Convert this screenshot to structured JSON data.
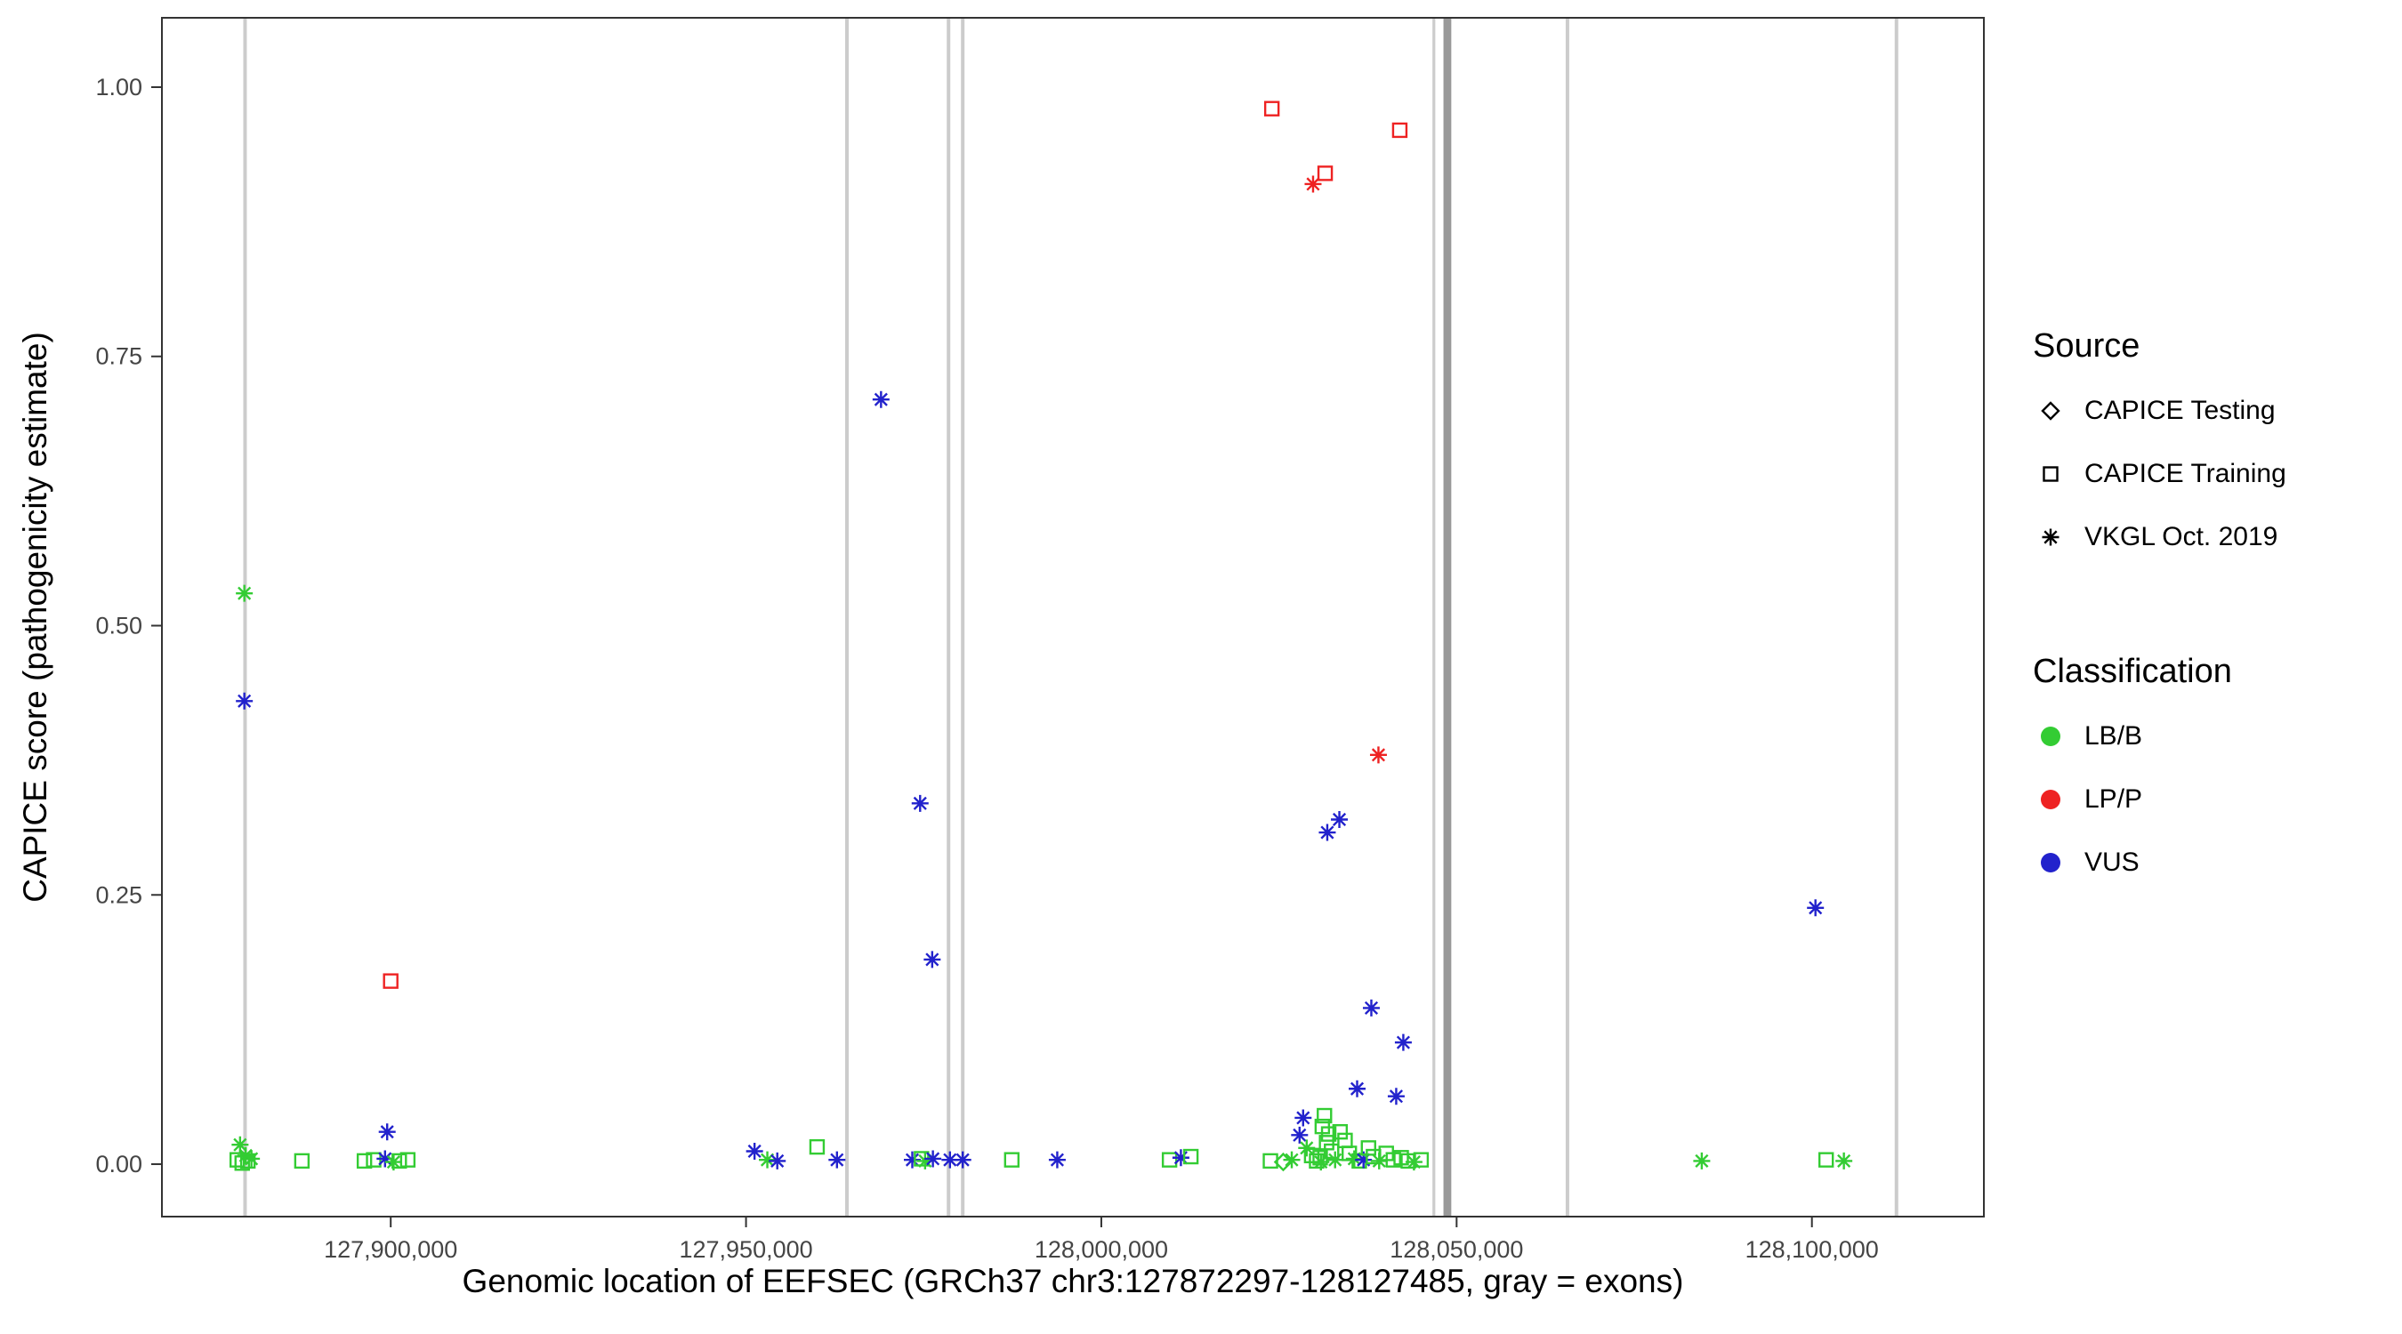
{
  "figure": {
    "background": "#ffffff",
    "panel_border_color": "#333333",
    "tick_label_color": "#454545"
  },
  "legend": {
    "source": {
      "title": "Source",
      "items": [
        {
          "shape": "diamond",
          "label": "CAPICE Testing"
        },
        {
          "shape": "square",
          "label": "CAPICE Training"
        },
        {
          "shape": "asterisk",
          "label": "VKGL Oct. 2019"
        }
      ]
    },
    "classification": {
      "title": "Classification",
      "items": [
        {
          "label": "LB/B",
          "color": "#33cc33"
        },
        {
          "label": "LP/P",
          "color": "#ee2222"
        },
        {
          "label": "VUS",
          "color": "#2222cc"
        }
      ]
    }
  },
  "chart_data": {
    "type": "scatter",
    "title": "",
    "xlabel": "Genomic location of EEFSEC (GRCh37 chr3:127872297-128127485, gray = exons)",
    "ylabel": "CAPICE score (pathogenicity estimate)",
    "xlim": [
      127867800,
      128124200
    ],
    "ylim": [
      -0.0487,
      1.0644
    ],
    "grid": false,
    "legend_position": "right",
    "x_ticks": [
      {
        "value": 127900000,
        "label": "127,900,000"
      },
      {
        "value": 127950000,
        "label": "127,950,000"
      },
      {
        "value": 128000000,
        "label": "128,000,000"
      },
      {
        "value": 128050000,
        "label": "128,050,000"
      },
      {
        "value": 128100000,
        "label": "128,100,000"
      }
    ],
    "y_ticks": [
      {
        "value": 0.0,
        "label": "0.00"
      },
      {
        "value": 0.25,
        "label": "0.25"
      },
      {
        "value": 0.5,
        "label": "0.50"
      },
      {
        "value": 0.75,
        "label": "0.75"
      },
      {
        "value": 1.0,
        "label": "1.00"
      }
    ],
    "classes": {
      "LB/B": "#33cc33",
      "LP/P": "#ee2222",
      "VUS": "#2222cc"
    },
    "shapes": {
      "CAPICE Testing": "diamond",
      "CAPICE Training": "square",
      "VKGL Oct. 2019": "asterisk"
    },
    "exon_default_color": "#cccccc",
    "exons": [
      {
        "pos": 127879500,
        "width_bp": 500
      },
      {
        "pos": 127964200,
        "width_bp": 500
      },
      {
        "pos": 127978500,
        "width_bp": 500
      },
      {
        "pos": 127980500,
        "width_bp": 500
      },
      {
        "pos": 128046800,
        "width_bp": 400
      },
      {
        "pos": 128048700,
        "width_bp": 1100,
        "color": "#999999"
      },
      {
        "pos": 128065600,
        "width_bp": 500
      },
      {
        "pos": 128111900,
        "width_bp": 500
      }
    ],
    "points_columns": [
      "position",
      "score",
      "source",
      "classification"
    ],
    "points": [
      [
        127879400,
        0.53,
        "VKGL Oct. 2019",
        "LB/B"
      ],
      [
        127879400,
        0.43,
        "VKGL Oct. 2019",
        "VUS"
      ],
      [
        127878800,
        0.018,
        "VKGL Oct. 2019",
        "LB/B"
      ],
      [
        127879600,
        0.008,
        "VKGL Oct. 2019",
        "LB/B"
      ],
      [
        127880400,
        0.005,
        "VKGL Oct. 2019",
        "LB/B"
      ],
      [
        127878400,
        0.004,
        "CAPICE Training",
        "LB/B"
      ],
      [
        127879900,
        0.003,
        "CAPICE Training",
        "LB/B"
      ],
      [
        127879100,
        0.001,
        "CAPICE Training",
        "LB/B"
      ],
      [
        127887500,
        0.003,
        "CAPICE Training",
        "LB/B"
      ],
      [
        127896300,
        0.003,
        "CAPICE Training",
        "LB/B"
      ],
      [
        127897600,
        0.004,
        "CAPICE Training",
        "LB/B"
      ],
      [
        127899200,
        0.005,
        "VKGL Oct. 2019",
        "VUS"
      ],
      [
        127899500,
        0.03,
        "VKGL Oct. 2019",
        "VUS"
      ],
      [
        127900000,
        0.17,
        "CAPICE Training",
        "LP/P"
      ],
      [
        127900400,
        0.002,
        "VKGL Oct. 2019",
        "LB/B"
      ],
      [
        127901200,
        0.003,
        "CAPICE Training",
        "LB/B"
      ],
      [
        127902400,
        0.004,
        "CAPICE Training",
        "LB/B"
      ],
      [
        127951200,
        0.012,
        "VKGL Oct. 2019",
        "VUS"
      ],
      [
        127953000,
        0.004,
        "VKGL Oct. 2019",
        "LB/B"
      ],
      [
        127954400,
        0.003,
        "VKGL Oct. 2019",
        "VUS"
      ],
      [
        127960000,
        0.016,
        "CAPICE Training",
        "LB/B"
      ],
      [
        127962800,
        0.004,
        "VKGL Oct. 2019",
        "VUS"
      ],
      [
        127969000,
        0.71,
        "VKGL Oct. 2019",
        "VUS"
      ],
      [
        127973400,
        0.004,
        "VKGL Oct. 2019",
        "VUS"
      ],
      [
        127974500,
        0.335,
        "VKGL Oct. 2019",
        "VUS"
      ],
      [
        127974700,
        0.005,
        "CAPICE Training",
        "LB/B"
      ],
      [
        127975200,
        0.003,
        "VKGL Oct. 2019",
        "LB/B"
      ],
      [
        127976200,
        0.19,
        "VKGL Oct. 2019",
        "VUS"
      ],
      [
        127976300,
        0.005,
        "VKGL Oct. 2019",
        "VUS"
      ],
      [
        127978700,
        0.004,
        "VKGL Oct. 2019",
        "VUS"
      ],
      [
        127980500,
        0.004,
        "VKGL Oct. 2019",
        "VUS"
      ],
      [
        127987400,
        0.004,
        "CAPICE Training",
        "LB/B"
      ],
      [
        127993800,
        0.004,
        "VKGL Oct. 2019",
        "VUS"
      ],
      [
        128009600,
        0.004,
        "CAPICE Training",
        "LB/B"
      ],
      [
        128011200,
        0.006,
        "VKGL Oct. 2019",
        "VUS"
      ],
      [
        128012600,
        0.007,
        "CAPICE Training",
        "LB/B"
      ],
      [
        128023800,
        0.003,
        "CAPICE Training",
        "LB/B"
      ],
      [
        128024000,
        0.98,
        "CAPICE Training",
        "LP/P"
      ],
      [
        128025600,
        0.002,
        "CAPICE Testing",
        "LB/B"
      ],
      [
        128026800,
        0.004,
        "VKGL Oct. 2019",
        "LB/B"
      ],
      [
        128027900,
        0.027,
        "VKGL Oct. 2019",
        "VUS"
      ],
      [
        128028400,
        0.043,
        "VKGL Oct. 2019",
        "VUS"
      ],
      [
        128028900,
        0.015,
        "VKGL Oct. 2019",
        "LB/B"
      ],
      [
        128029600,
        0.008,
        "CAPICE Training",
        "LB/B"
      ],
      [
        128029800,
        0.91,
        "VKGL Oct. 2019",
        "LP/P"
      ],
      [
        128030300,
        0.003,
        "CAPICE Training",
        "LB/B"
      ],
      [
        128030800,
        0.006,
        "CAPICE Training",
        "LB/B"
      ],
      [
        128030900,
        0.002,
        "VKGL Oct. 2019",
        "LB/B"
      ],
      [
        128031100,
        0.035,
        "CAPICE Training",
        "LB/B"
      ],
      [
        128031400,
        0.045,
        "CAPICE Training",
        "LB/B"
      ],
      [
        128031500,
        0.92,
        "CAPICE Training",
        "LP/P"
      ],
      [
        128031700,
        0.02,
        "CAPICE Training",
        "LB/B"
      ],
      [
        128031800,
        0.308,
        "VKGL Oct. 2019",
        "VUS"
      ],
      [
        128032000,
        0.028,
        "CAPICE Training",
        "LB/B"
      ],
      [
        128032400,
        0.012,
        "CAPICE Training",
        "LB/B"
      ],
      [
        128032900,
        0.004,
        "VKGL Oct. 2019",
        "LB/B"
      ],
      [
        128033500,
        0.32,
        "VKGL Oct. 2019",
        "VUS"
      ],
      [
        128033600,
        0.03,
        "CAPICE Training",
        "LB/B"
      ],
      [
        128034300,
        0.022,
        "CAPICE Training",
        "LB/B"
      ],
      [
        128034900,
        0.01,
        "CAPICE Training",
        "LB/B"
      ],
      [
        128035600,
        0.005,
        "VKGL Oct. 2019",
        "LB/B"
      ],
      [
        128036000,
        0.07,
        "VKGL Oct. 2019",
        "VUS"
      ],
      [
        128036300,
        0.003,
        "CAPICE Training",
        "LB/B"
      ],
      [
        128036900,
        0.004,
        "VKGL Oct. 2019",
        "VUS"
      ],
      [
        128037600,
        0.015,
        "CAPICE Training",
        "LB/B"
      ],
      [
        128038000,
        0.145,
        "VKGL Oct. 2019",
        "VUS"
      ],
      [
        128038300,
        0.007,
        "CAPICE Training",
        "LB/B"
      ],
      [
        128039000,
        0.38,
        "VKGL Oct. 2019",
        "LP/P"
      ],
      [
        128039100,
        0.003,
        "VKGL Oct. 2019",
        "LB/B"
      ],
      [
        128040100,
        0.01,
        "CAPICE Training",
        "LB/B"
      ],
      [
        128041100,
        0.004,
        "CAPICE Training",
        "LB/B"
      ],
      [
        128041500,
        0.063,
        "VKGL Oct. 2019",
        "VUS"
      ],
      [
        128042000,
        0.96,
        "CAPICE Training",
        "LP/P"
      ],
      [
        128042200,
        0.006,
        "CAPICE Training",
        "LB/B"
      ],
      [
        128042500,
        0.113,
        "VKGL Oct. 2019",
        "VUS"
      ],
      [
        128043200,
        0.003,
        "CAPICE Training",
        "LB/B"
      ],
      [
        128044000,
        0.002,
        "VKGL Oct. 2019",
        "LB/B"
      ],
      [
        128045000,
        0.004,
        "CAPICE Training",
        "LB/B"
      ],
      [
        128084500,
        0.003,
        "VKGL Oct. 2019",
        "LB/B"
      ],
      [
        128100500,
        0.238,
        "VKGL Oct. 2019",
        "VUS"
      ],
      [
        128102000,
        0.004,
        "CAPICE Training",
        "LB/B"
      ],
      [
        128104500,
        0.003,
        "VKGL Oct. 2019",
        "LB/B"
      ]
    ]
  }
}
